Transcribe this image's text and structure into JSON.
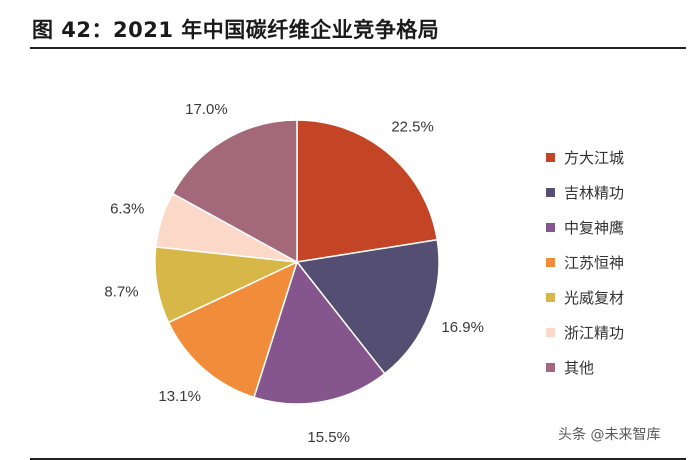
{
  "title": "图 42：2021 年中国碳纤维企业竞争格局",
  "watermark": "头条 @未来智库",
  "chart_data": {
    "type": "pie",
    "title": "",
    "legend_position": "right",
    "slices": [
      {
        "label": "方大江城",
        "value": 22.5,
        "value_label": "22.5%",
        "color": "#c44525"
      },
      {
        "label": "吉林精功",
        "value": 16.9,
        "value_label": "16.9%",
        "color": "#544f72"
      },
      {
        "label": "中复神鹰",
        "value": 15.5,
        "value_label": "15.5%",
        "color": "#85558e"
      },
      {
        "label": "江苏恒神",
        "value": 13.1,
        "value_label": "13.1%",
        "color": "#f08c3a"
      },
      {
        "label": "光威复材",
        "value": 8.7,
        "value_label": "8.7%",
        "color": "#d6b748"
      },
      {
        "label": "浙江精功",
        "value": 6.3,
        "value_label": "6.3%",
        "color": "#fcd8c8"
      },
      {
        "label": "其他",
        "value": 17.0,
        "value_label": "17.0%",
        "color": "#a3687a"
      }
    ]
  }
}
